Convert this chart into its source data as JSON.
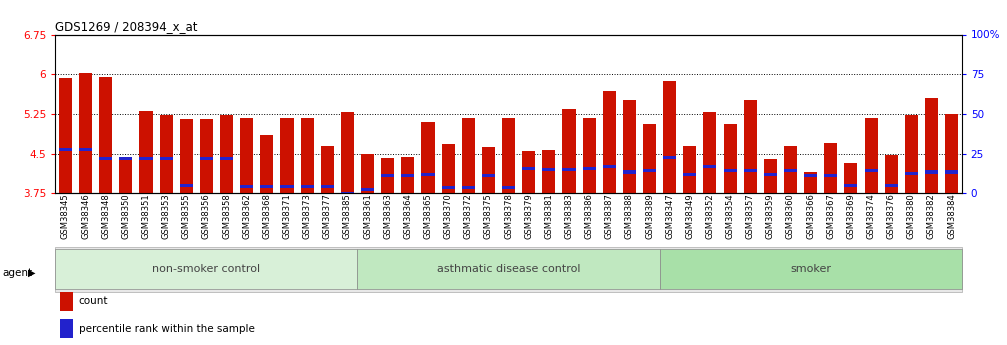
{
  "title": "GDS1269 / 208394_x_at",
  "ylim_left": [
    3.75,
    6.75
  ],
  "ylim_right": [
    0,
    100
  ],
  "yticks_left": [
    3.75,
    4.5,
    5.25,
    6.0,
    6.75
  ],
  "yticks_right": [
    0,
    25,
    50,
    75,
    100
  ],
  "ytick_labels_left": [
    "3.75",
    "4.5",
    "5.25",
    "6",
    "6.75"
  ],
  "ytick_labels_right": [
    "0",
    "25",
    "50",
    "75",
    "100%"
  ],
  "hlines": [
    6.0,
    5.25,
    4.5
  ],
  "categories": [
    "GSM38345",
    "GSM38346",
    "GSM38348",
    "GSM38350",
    "GSM38351",
    "GSM38353",
    "GSM38355",
    "GSM38356",
    "GSM38358",
    "GSM38362",
    "GSM38368",
    "GSM38371",
    "GSM38373",
    "GSM38377",
    "GSM38385",
    "GSM38361",
    "GSM38363",
    "GSM38364",
    "GSM38365",
    "GSM38370",
    "GSM38372",
    "GSM38375",
    "GSM38378",
    "GSM38379",
    "GSM38381",
    "GSM38383",
    "GSM38386",
    "GSM38387",
    "GSM38388",
    "GSM38389",
    "GSM38347",
    "GSM38349",
    "GSM38352",
    "GSM38354",
    "GSM38357",
    "GSM38359",
    "GSM38360",
    "GSM38366",
    "GSM38367",
    "GSM38369",
    "GSM38374",
    "GSM38376",
    "GSM38380",
    "GSM38382",
    "GSM38384"
  ],
  "bar_values": [
    5.92,
    6.02,
    5.95,
    4.42,
    5.3,
    5.22,
    5.15,
    5.15,
    5.22,
    5.18,
    4.85,
    5.18,
    5.18,
    4.65,
    5.28,
    4.5,
    4.42,
    4.44,
    5.1,
    4.68,
    5.18,
    4.62,
    5.18,
    4.55,
    4.57,
    5.35,
    5.18,
    5.68,
    5.52,
    5.05,
    5.88,
    4.65,
    5.28,
    5.05,
    5.52,
    4.4,
    4.65,
    4.15,
    4.7,
    4.32,
    5.18,
    4.48,
    5.22,
    5.55,
    5.25
  ],
  "percentile_values": [
    4.57,
    4.57,
    4.4,
    4.4,
    4.4,
    4.4,
    3.9,
    4.4,
    4.4,
    3.88,
    3.88,
    3.88,
    3.88,
    3.88,
    3.75,
    3.82,
    4.08,
    4.08,
    4.1,
    3.85,
    3.85,
    4.08,
    3.85,
    4.22,
    4.2,
    4.2,
    4.22,
    4.25,
    4.15,
    4.18,
    4.42,
    4.1,
    4.25,
    4.18,
    4.18,
    4.1,
    4.18,
    4.08,
    4.08,
    3.9,
    4.18,
    3.9,
    4.12,
    4.15,
    4.15
  ],
  "groups": [
    {
      "label": "non-smoker control",
      "start": 0,
      "end": 14,
      "color": "#d8f0d8"
    },
    {
      "label": "asthmatic disease control",
      "start": 15,
      "end": 29,
      "color": "#c0e8c0"
    },
    {
      "label": "smoker",
      "start": 30,
      "end": 44,
      "color": "#a8e0a8"
    }
  ],
  "bar_color": "#cc1100",
  "percentile_color": "#2222cc",
  "bar_width": 0.65,
  "background_color": "#ffffff",
  "agent_label": "agent",
  "legend_items": [
    {
      "label": "count",
      "color": "#cc1100"
    },
    {
      "label": "percentile rank within the sample",
      "color": "#2222cc"
    }
  ]
}
